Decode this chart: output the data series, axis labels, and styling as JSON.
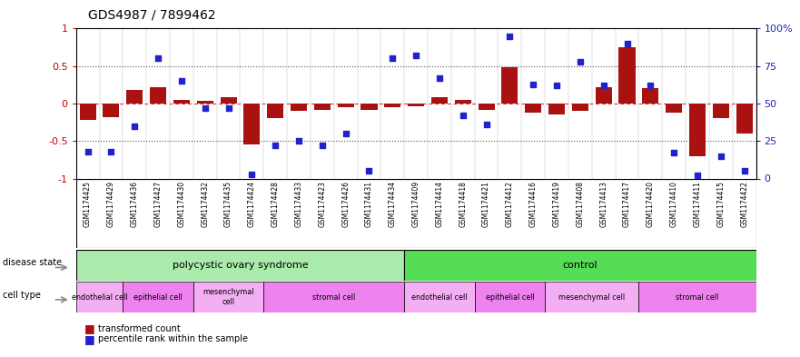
{
  "title": "GDS4987 / 7899462",
  "samples": [
    "GSM1174425",
    "GSM1174429",
    "GSM1174436",
    "GSM1174427",
    "GSM1174430",
    "GSM1174432",
    "GSM1174435",
    "GSM1174424",
    "GSM1174428",
    "GSM1174433",
    "GSM1174423",
    "GSM1174426",
    "GSM1174431",
    "GSM1174434",
    "GSM1174409",
    "GSM1174414",
    "GSM1174418",
    "GSM1174421",
    "GSM1174412",
    "GSM1174416",
    "GSM1174419",
    "GSM1174408",
    "GSM1174413",
    "GSM1174417",
    "GSM1174420",
    "GSM1174410",
    "GSM1174411",
    "GSM1174415",
    "GSM1174422"
  ],
  "bar_values": [
    -0.22,
    -0.18,
    0.18,
    0.22,
    0.05,
    0.04,
    0.08,
    -0.55,
    -0.2,
    -0.1,
    -0.08,
    -0.05,
    -0.08,
    -0.05,
    -0.04,
    0.08,
    0.05,
    -0.08,
    0.48,
    -0.12,
    -0.15,
    -0.1,
    0.22,
    0.75,
    0.2,
    -0.12,
    -0.7,
    -0.2,
    -0.4
  ],
  "dot_values": [
    18,
    18,
    35,
    80,
    65,
    47,
    47,
    3,
    22,
    25,
    22,
    30,
    5,
    80,
    82,
    67,
    42,
    36,
    95,
    63,
    62,
    78,
    62,
    90,
    62,
    17,
    2,
    15,
    5
  ],
  "disease_state_groups": [
    {
      "label": "polycystic ovary syndrome",
      "start": 0,
      "end": 14,
      "color": "#aaeaaa"
    },
    {
      "label": "control",
      "start": 14,
      "end": 29,
      "color": "#55dd55"
    }
  ],
  "cell_type_groups": [
    {
      "label": "endothelial cell",
      "start": 0,
      "end": 2,
      "color": "#f4aff4"
    },
    {
      "label": "epithelial cell",
      "start": 2,
      "end": 5,
      "color": "#ee82ee"
    },
    {
      "label": "mesenchymal\ncell",
      "start": 5,
      "end": 8,
      "color": "#f4aff4"
    },
    {
      "label": "stromal cell",
      "start": 8,
      "end": 14,
      "color": "#ee82ee"
    },
    {
      "label": "endothelial cell",
      "start": 14,
      "end": 17,
      "color": "#f4aff4"
    },
    {
      "label": "epithelial cell",
      "start": 17,
      "end": 20,
      "color": "#ee82ee"
    },
    {
      "label": "mesenchymal cell",
      "start": 20,
      "end": 24,
      "color": "#f4aff4"
    },
    {
      "label": "stromal cell",
      "start": 24,
      "end": 29,
      "color": "#ee82ee"
    }
  ],
  "bar_color": "#aa1111",
  "dot_color": "#2222CC",
  "ylim": [
    -1.0,
    1.0
  ],
  "y2lim": [
    0,
    100
  ],
  "yticks_left": [
    -1.0,
    -0.5,
    0.0,
    0.5,
    1.0
  ],
  "ytick_labels_left": [
    "-1",
    "-0.5",
    "0",
    "0.5",
    "1"
  ],
  "y2ticks": [
    0,
    25,
    50,
    75,
    100
  ],
  "y2tick_labels": [
    "0",
    "25",
    "50",
    "75",
    "100%"
  ],
  "hline_color": "#dd2222",
  "bg_color": "#ffffff",
  "sample_label_bg": "#dddddd",
  "legend_bar_label": "transformed count",
  "legend_dot_label": "percentile rank within the sample",
  "disease_state_label": "disease state",
  "cell_type_label": "cell type"
}
